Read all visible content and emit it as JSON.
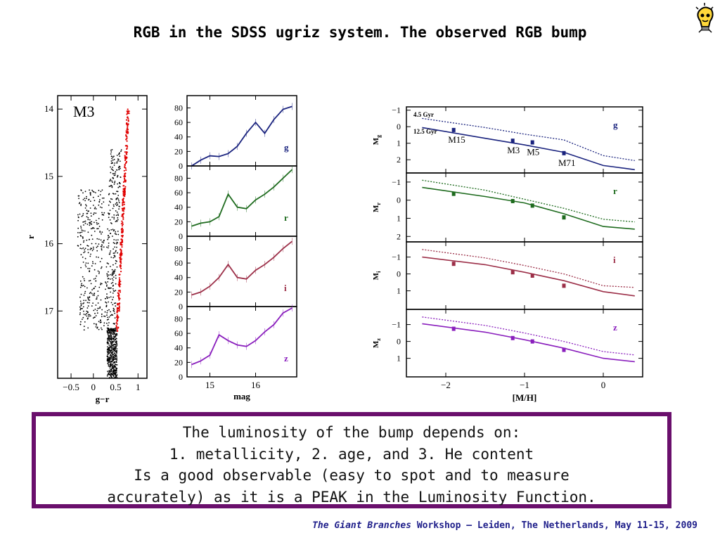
{
  "title": "RGB in the SDSS ugriz system. The observed RGB bump",
  "logo_icon": "lightbulb-mascot-icon",
  "text_box": {
    "lines": [
      "The luminosity of the bump depends on:",
      "1. metallicity, 2. age, and 3. He content",
      "Is a good observable (easy to spot and to measure",
      "accurately) as it is a PEAK in the Luminosity Function."
    ],
    "border_color": "#6a0f6c"
  },
  "footer": {
    "italic": "The Giant Branches",
    "rest": " Workshop – Leiden, The Netherlands, May 11-15, 2009"
  },
  "chart_data": [
    {
      "type": "scatter",
      "label": "M3",
      "xlabel": "g−r",
      "ylabel": "r",
      "xlim": [
        -0.8,
        1.2
      ],
      "ylim": [
        18.0,
        13.8
      ],
      "xticks": [
        "−0.5",
        "0",
        "0.5",
        "1"
      ],
      "yticks": [
        "14",
        "15",
        "16",
        "17"
      ],
      "highlight_color": "#e00000",
      "point_color": "#000000"
    },
    {
      "type": "line",
      "xlabel": "mag",
      "xlim": [
        14.5,
        16.9
      ],
      "xticks": [
        "15",
        "16"
      ],
      "yticks": [
        "0",
        "20",
        "40",
        "60",
        "80"
      ],
      "ylim": [
        0,
        95
      ],
      "panels": [
        {
          "band": "g",
          "color": "#1a237e",
          "x": [
            14.6,
            14.8,
            15.0,
            15.2,
            15.4,
            15.6,
            15.8,
            16.0,
            16.2,
            16.4,
            16.6,
            16.8
          ],
          "values": [
            0,
            8,
            14,
            13,
            17,
            27,
            45,
            60,
            45,
            64,
            78,
            82
          ]
        },
        {
          "band": "r",
          "color": "#1e6b1e",
          "x": [
            14.6,
            14.8,
            15.0,
            15.2,
            15.4,
            15.6,
            15.8,
            16.0,
            16.2,
            16.4,
            16.6,
            16.8
          ],
          "values": [
            14,
            18,
            20,
            27,
            58,
            40,
            38,
            50,
            58,
            68,
            80,
            92
          ]
        },
        {
          "band": "i",
          "color": "#9c2f48",
          "x": [
            14.6,
            14.8,
            15.0,
            15.2,
            15.4,
            15.6,
            15.8,
            16.0,
            16.2,
            16.4,
            16.6,
            16.8
          ],
          "values": [
            16,
            20,
            28,
            40,
            58,
            40,
            38,
            50,
            58,
            68,
            80,
            90
          ]
        },
        {
          "band": "z",
          "color": "#8a1fbd",
          "x": [
            14.6,
            14.8,
            15.0,
            15.2,
            15.4,
            15.6,
            15.8,
            16.0,
            16.2,
            16.4,
            16.6,
            16.8
          ],
          "values": [
            17,
            22,
            30,
            58,
            50,
            44,
            42,
            50,
            62,
            72,
            88,
            95
          ]
        }
      ]
    },
    {
      "type": "line",
      "xlabel": "[M/H]",
      "xlim": [
        -2.5,
        0.5
      ],
      "xticks": [
        "−2",
        "−1",
        "0"
      ],
      "panels": [
        {
          "band": "g",
          "ylabel": "M",
          "sub": "g",
          "color": "#1a237e",
          "ylim": [
            2.8,
            -1.2
          ],
          "yticks": [
            "−1",
            "0",
            "1",
            "2"
          ],
          "ages": [
            "4.5 Gyr",
            "12.5 Gyr"
          ],
          "dotted": {
            "x": [
              -2.3,
              -1.5,
              -1.0,
              -0.5,
              0,
              0.4
            ],
            "y": [
              -0.5,
              0.05,
              0.45,
              0.8,
              1.75,
              2.05
            ]
          },
          "solid": {
            "x": [
              -2.3,
              -1.5,
              -1.0,
              -0.5,
              0,
              0.4
            ],
            "y": [
              0.05,
              0.7,
              1.1,
              1.55,
              2.35,
              2.6
            ]
          },
          "clusters": [
            {
              "name": "M15",
              "x": -1.9,
              "y": 0.2
            },
            {
              "name": "M3",
              "x": -1.15,
              "y": 0.85
            },
            {
              "name": "M5",
              "x": -0.9,
              "y": 0.95
            },
            {
              "name": "M71",
              "x": -0.5,
              "y": 1.6
            }
          ]
        },
        {
          "band": "r",
          "ylabel": "M",
          "sub": "r",
          "color": "#1e6b1e",
          "ylim": [
            2.3,
            -1.5
          ],
          "yticks": [
            "−1",
            "0",
            "1",
            "2"
          ],
          "dotted": {
            "x": [
              -2.3,
              -1.5,
              -1.0,
              -0.5,
              0,
              0.4
            ],
            "y": [
              -1.1,
              -0.55,
              -0.05,
              0.45,
              1.05,
              1.2
            ]
          },
          "solid": {
            "x": [
              -2.3,
              -1.5,
              -1.0,
              -0.5,
              0,
              0.4
            ],
            "y": [
              -0.7,
              -0.2,
              0.15,
              0.75,
              1.45,
              1.6
            ]
          },
          "clusters": [
            {
              "name": "",
              "x": -1.9,
              "y": -0.35
            },
            {
              "name": "",
              "x": -1.15,
              "y": 0.05
            },
            {
              "name": "",
              "x": -0.9,
              "y": 0.3
            },
            {
              "name": "",
              "x": -0.5,
              "y": 0.95
            }
          ]
        },
        {
          "band": "i",
          "ylabel": "M",
          "sub": "i",
          "color": "#9c2f48",
          "ylim": [
            2.1,
            -1.9
          ],
          "yticks": [
            "−1",
            "0",
            "1"
          ],
          "dotted": {
            "x": [
              -2.3,
              -1.5,
              -1.0,
              -0.5,
              0,
              0.4
            ],
            "y": [
              -1.45,
              -0.95,
              -0.5,
              0.0,
              0.7,
              0.8
            ]
          },
          "solid": {
            "x": [
              -2.3,
              -1.5,
              -1.0,
              -0.5,
              0,
              0.4
            ],
            "y": [
              -1.0,
              -0.55,
              -0.1,
              0.4,
              1.05,
              1.3
            ]
          },
          "clusters": [
            {
              "name": "",
              "x": -1.9,
              "y": -0.6
            },
            {
              "name": "",
              "x": -1.15,
              "y": -0.1
            },
            {
              "name": "",
              "x": -0.9,
              "y": 0.1
            },
            {
              "name": "",
              "x": -0.5,
              "y": 0.7
            }
          ]
        },
        {
          "band": "z",
          "ylabel": "M",
          "sub": "z",
          "color": "#8a1fbd",
          "ylim": [
            2.1,
            -1.9
          ],
          "yticks": [
            "−1",
            "0",
            "1"
          ],
          "dotted": {
            "x": [
              -2.3,
              -1.5,
              -1.0,
              -0.5,
              0,
              0.4
            ],
            "y": [
              -1.45,
              -0.95,
              -0.5,
              0.0,
              0.6,
              0.8
            ]
          },
          "solid": {
            "x": [
              -2.3,
              -1.5,
              -1.0,
              -0.5,
              0,
              0.4
            ],
            "y": [
              -1.05,
              -0.55,
              -0.1,
              0.4,
              1.0,
              1.2
            ]
          },
          "clusters": [
            {
              "name": "",
              "x": -1.9,
              "y": -0.75
            },
            {
              "name": "",
              "x": -1.15,
              "y": -0.2
            },
            {
              "name": "",
              "x": -0.9,
              "y": 0.0
            },
            {
              "name": "",
              "x": -0.5,
              "y": 0.5
            }
          ]
        }
      ]
    }
  ]
}
